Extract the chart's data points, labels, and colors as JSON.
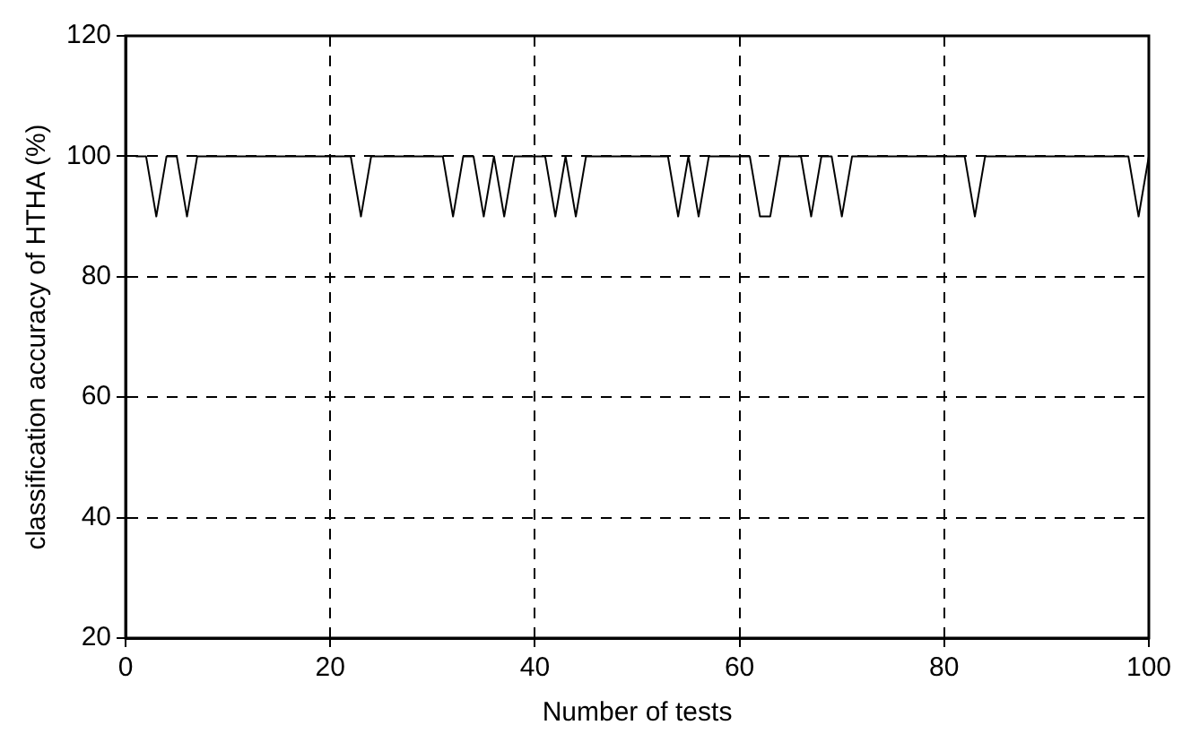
{
  "chart_data": {
    "type": "line",
    "xlabel": "Number of tests",
    "ylabel": "classification accuracy of HTHA (%)",
    "x": [
      1,
      2,
      3,
      4,
      5,
      6,
      7,
      8,
      9,
      10,
      11,
      12,
      13,
      14,
      15,
      16,
      17,
      18,
      19,
      20,
      21,
      22,
      23,
      24,
      25,
      26,
      27,
      28,
      29,
      30,
      31,
      32,
      33,
      34,
      35,
      36,
      37,
      38,
      39,
      40,
      41,
      42,
      43,
      44,
      45,
      46,
      47,
      48,
      49,
      50,
      51,
      52,
      53,
      54,
      55,
      56,
      57,
      58,
      59,
      60,
      61,
      62,
      63,
      64,
      65,
      66,
      67,
      68,
      69,
      70,
      71,
      72,
      73,
      74,
      75,
      76,
      77,
      78,
      79,
      80,
      81,
      82,
      83,
      84,
      85,
      86,
      87,
      88,
      89,
      90,
      91,
      92,
      93,
      94,
      95,
      96,
      97,
      98,
      99,
      100
    ],
    "series": [
      {
        "color": "#000000",
        "values": [
          100,
          100,
          90,
          100,
          100,
          90,
          100,
          100,
          100,
          100,
          100,
          100,
          100,
          100,
          100,
          100,
          100,
          100,
          100,
          100,
          100,
          100,
          90,
          100,
          100,
          100,
          100,
          100,
          100,
          100,
          100,
          90,
          100,
          100,
          90,
          100,
          90,
          100,
          100,
          100,
          100,
          90,
          100,
          90,
          100,
          100,
          100,
          100,
          100,
          100,
          100,
          100,
          100,
          90,
          100,
          90,
          100,
          100,
          100,
          100,
          100,
          90,
          90,
          100,
          100,
          100,
          90,
          100,
          100,
          90,
          100,
          100,
          100,
          100,
          100,
          100,
          100,
          100,
          100,
          100,
          100,
          100,
          90,
          100,
          100,
          100,
          100,
          100,
          100,
          100,
          100,
          100,
          100,
          100,
          100,
          100,
          100,
          100,
          90,
          100
        ]
      }
    ],
    "xlim": [
      0,
      100
    ],
    "xticks": [
      0,
      20,
      40,
      60,
      80,
      100
    ],
    "ylim": [
      20,
      120
    ],
    "yticks": [
      20,
      40,
      60,
      80,
      100,
      120
    ],
    "grid": true,
    "legend": false,
    "marker": "none",
    "line_style": "solid"
  }
}
